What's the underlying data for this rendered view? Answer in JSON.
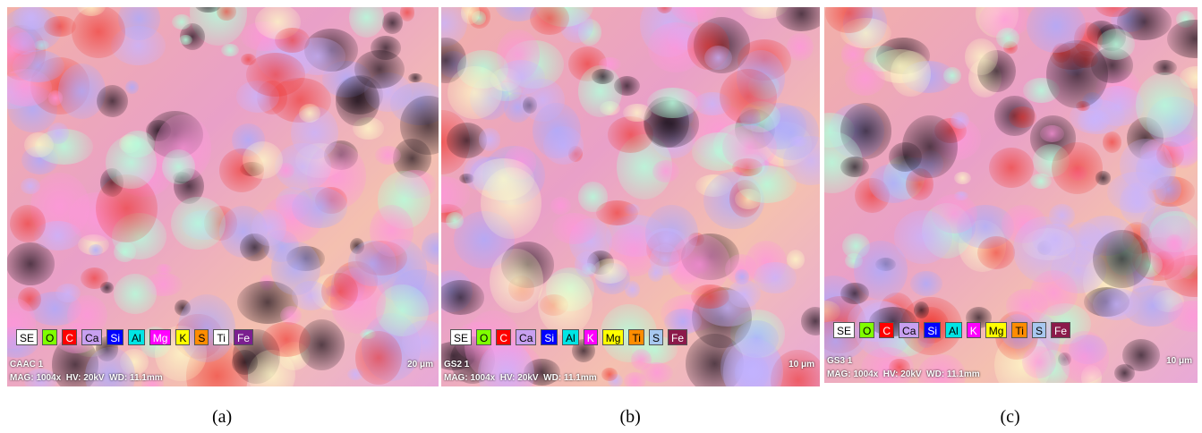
{
  "panels": [
    {
      "label": "(a)",
      "sample": "CAAC 1",
      "info": "MAG: 1004x  HV: 20kV  WD: 11.1mm",
      "scale": "20 μm",
      "legend": [
        {
          "name": "SE",
          "color": "#ffffff"
        },
        {
          "name": "O",
          "color": "#7fff00"
        },
        {
          "name": "C",
          "color": "#ff0000"
        },
        {
          "name": "Ca",
          "color": "#c8a0f0"
        },
        {
          "name": "Si",
          "color": "#0000ff"
        },
        {
          "name": "Al",
          "color": "#00e5e5"
        },
        {
          "name": "Mg",
          "color": "#ff00ff"
        },
        {
          "name": "K",
          "color": "#ffff00"
        },
        {
          "name": "S",
          "color": "#ff8c00"
        },
        {
          "name": "Ti",
          "color": "#ffffff"
        },
        {
          "name": "Fe",
          "color": "#7b1f8f"
        }
      ]
    },
    {
      "label": "(b)",
      "sample": "GS2 1",
      "info": "MAG: 1004x  HV: 20kV  WD: 11.1mm",
      "scale": "10 μm",
      "legend": [
        {
          "name": "SE",
          "color": "#ffffff"
        },
        {
          "name": "O",
          "color": "#7fff00"
        },
        {
          "name": "C",
          "color": "#ff0000"
        },
        {
          "name": "Ca",
          "color": "#c8a0f0"
        },
        {
          "name": "Si",
          "color": "#0000ff"
        },
        {
          "name": "Al",
          "color": "#00e5e5"
        },
        {
          "name": "K",
          "color": "#ff00ff"
        },
        {
          "name": "Mg",
          "color": "#ffff00"
        },
        {
          "name": "Ti",
          "color": "#ff8c00"
        },
        {
          "name": "S",
          "color": "#a8c8f0"
        },
        {
          "name": "Fe",
          "color": "#8b1a4a"
        }
      ]
    },
    {
      "label": "(c)",
      "sample": "GS3 1",
      "info": "MAG: 1004x  HV: 20kV  WD: 11.1mm",
      "scale": "10 μm",
      "legend": [
        {
          "name": "SE",
          "color": "#ffffff"
        },
        {
          "name": "O",
          "color": "#7fff00"
        },
        {
          "name": "C",
          "color": "#ff0000"
        },
        {
          "name": "Ca",
          "color": "#c8a0f0"
        },
        {
          "name": "Si",
          "color": "#0000ff"
        },
        {
          "name": "Al",
          "color": "#00e5e5"
        },
        {
          "name": "K",
          "color": "#ff00ff"
        },
        {
          "name": "Mg",
          "color": "#ffff00"
        },
        {
          "name": "Ti",
          "color": "#ff8c00"
        },
        {
          "name": "S",
          "color": "#a8c8f0"
        },
        {
          "name": "Fe",
          "color": "#8b1a4a"
        }
      ]
    }
  ]
}
